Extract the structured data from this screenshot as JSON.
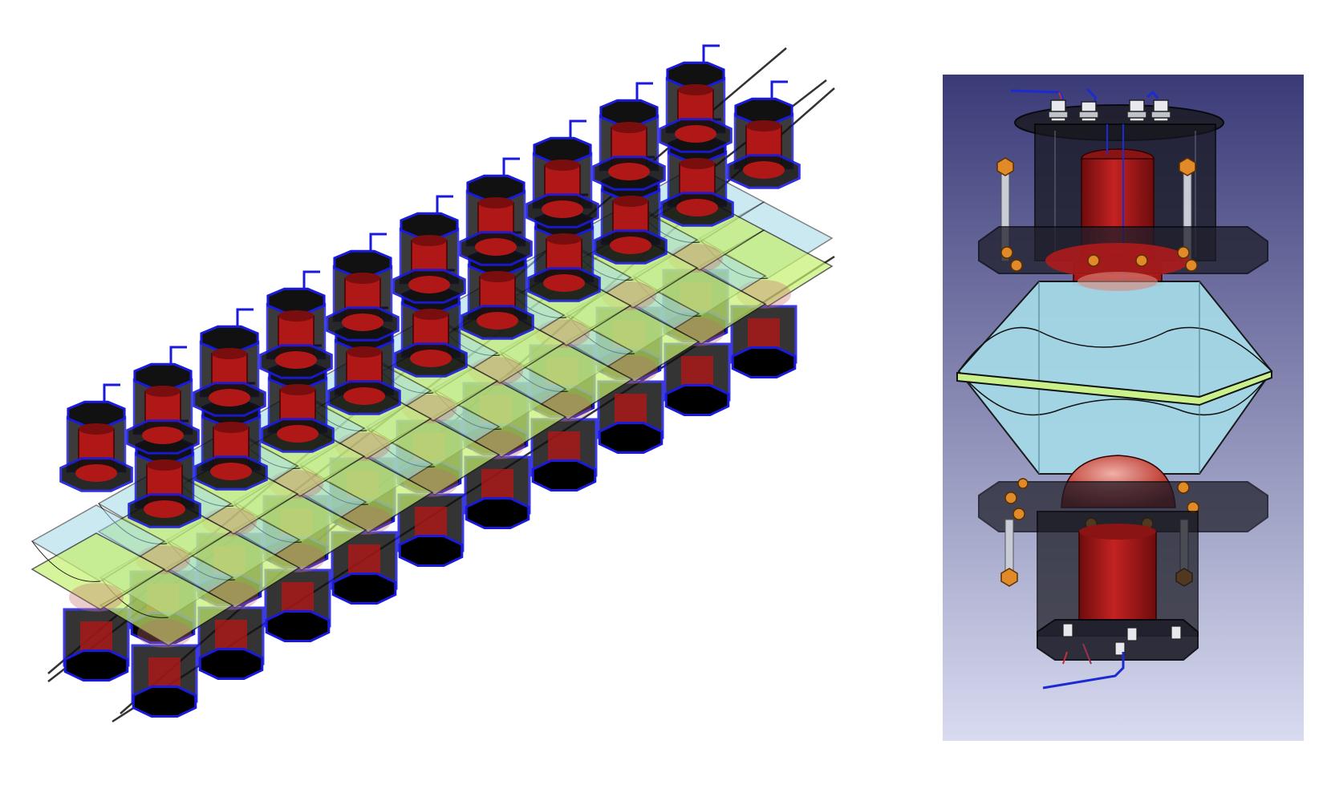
{
  "figure": {
    "left_panel": {
      "content": "isometric-module-array",
      "rows": 2,
      "modules_per_row": 10,
      "colors": {
        "frame_dark": "#111111",
        "frame_blue": "#1a1adc",
        "pmt_red": "#b01818",
        "light_guide": "#9fd8e6",
        "scintillator_plate": "#c6f06e",
        "rod": "#333333"
      }
    },
    "right_panel": {
      "content": "single-module-cutaway",
      "background_gradient": [
        "#3a3a78",
        "#d8dbf0"
      ],
      "colors": {
        "plate": "#1e1e2a",
        "bolt": "#e08a2a",
        "rod": "#c8ccd6",
        "pmt_red": "#b51a1a",
        "light_guide": "#a6dbe8",
        "scintillator_plate": "#c9f08a",
        "cable_blue": "#1c2bd0"
      }
    }
  }
}
